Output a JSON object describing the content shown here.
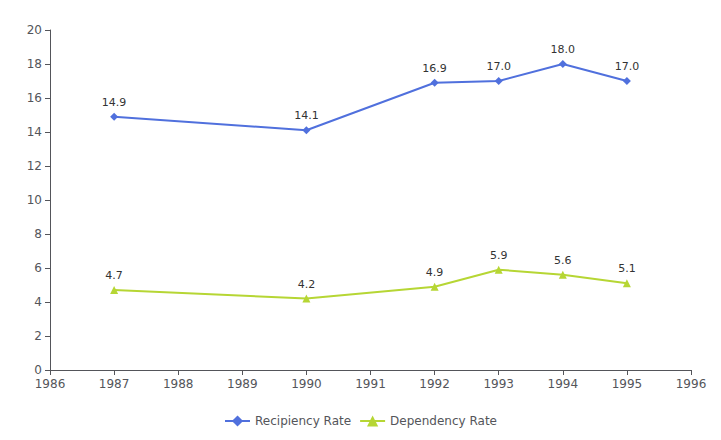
{
  "chart_data": {
    "type": "line",
    "x": [
      1987,
      1990,
      1992,
      1993,
      1994,
      1995
    ],
    "series": [
      {
        "name": "Recipiency Rate",
        "marker": "diamond",
        "values": [
          14.9,
          14.1,
          16.9,
          17.0,
          18.0,
          17.0
        ],
        "value_labels": [
          "14.9",
          "14.1",
          "16.9",
          "17.0",
          "18.0",
          "17.0"
        ]
      },
      {
        "name": "Dependency Rate",
        "marker": "triangle",
        "values": [
          4.7,
          4.2,
          4.9,
          5.9,
          5.6,
          5.1
        ],
        "value_labels": [
          "4.7",
          "4.2",
          "4.9",
          "5.9",
          "5.6",
          "5.1"
        ]
      }
    ],
    "xlim": [
      1986,
      1996
    ],
    "xticks": [
      1986,
      1987,
      1988,
      1989,
      1990,
      1991,
      1992,
      1993,
      1994,
      1995,
      1996
    ],
    "ylim": [
      0,
      20
    ],
    "yticks": [
      0,
      2,
      4,
      6,
      8,
      10,
      12,
      14,
      16,
      18,
      20
    ],
    "grid": false,
    "legend": "bottom",
    "data_labels": true
  }
}
